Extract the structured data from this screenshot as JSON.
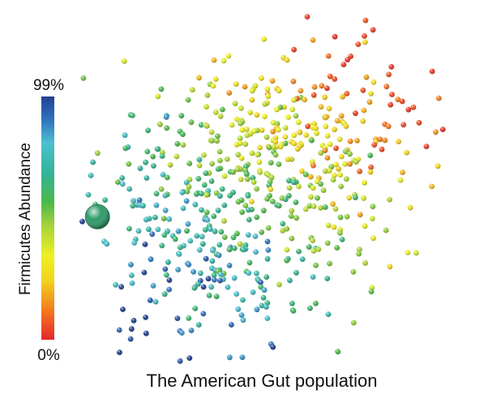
{
  "chart_data": {
    "type": "scatter",
    "title": "",
    "xlabel": "The American Gut population",
    "ylabel": "Firmicutes Abundance",
    "colorbar": {
      "label": "Firmicutes Abundance",
      "min_label": "0%",
      "max_label": "99%",
      "range": [
        0,
        99
      ],
      "stops": [
        {
          "value": 0,
          "color": "#e8262a"
        },
        {
          "value": 12,
          "color": "#f27a1e"
        },
        {
          "value": 24,
          "color": "#f2d21e"
        },
        {
          "value": 34,
          "color": "#eef022"
        },
        {
          "value": 46,
          "color": "#a9d43a"
        },
        {
          "value": 56,
          "color": "#4bb84a"
        },
        {
          "value": 68,
          "color": "#33b39a"
        },
        {
          "value": 80,
          "color": "#4cc0d0"
        },
        {
          "value": 90,
          "color": "#2f6fc0"
        },
        {
          "value": 99,
          "color": "#22418f"
        }
      ]
    },
    "highlight": {
      "x": 0.06,
      "y": 0.42,
      "abundance": 62,
      "color": "#2f9b6a"
    },
    "grid": false,
    "legend": "left colorbar",
    "xlim": [
      0,
      1
    ],
    "ylim": [
      0,
      1
    ],
    "point_count": 620,
    "seed": 20140604
  }
}
